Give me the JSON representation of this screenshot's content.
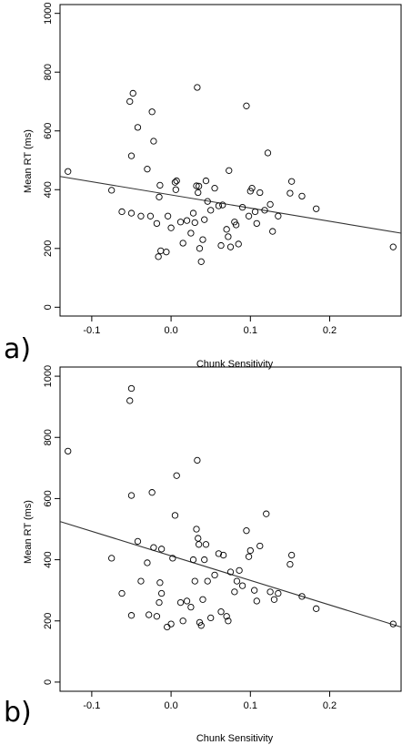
{
  "chart_data": [
    {
      "type": "scatter",
      "panel_label": "a)",
      "xlabel": "Chunk Sensitivity",
      "ylabel": "Mean RT (ms)",
      "xlim": [
        -0.14,
        0.29
      ],
      "ylim": [
        -30,
        1030
      ],
      "xticks": [
        -0.1,
        0.0,
        0.1,
        0.2
      ],
      "xtick_labels": [
        "-0.1",
        "0.0",
        "0.1",
        "0.2"
      ],
      "yticks": [
        0,
        200,
        400,
        600,
        800,
        1000
      ],
      "ytick_labels": [
        "0",
        "200",
        "400",
        "600",
        "800",
        "1000"
      ],
      "grid": false,
      "regression_line": {
        "x": [
          -0.14,
          0.29
        ],
        "y": [
          445,
          252
        ]
      },
      "points": [
        {
          "x": -0.13,
          "y": 462
        },
        {
          "x": -0.075,
          "y": 398
        },
        {
          "x": -0.062,
          "y": 325
        },
        {
          "x": -0.05,
          "y": 320
        },
        {
          "x": -0.052,
          "y": 700
        },
        {
          "x": -0.048,
          "y": 728
        },
        {
          "x": -0.05,
          "y": 515
        },
        {
          "x": -0.042,
          "y": 612
        },
        {
          "x": -0.038,
          "y": 310
        },
        {
          "x": -0.03,
          "y": 470
        },
        {
          "x": -0.026,
          "y": 310
        },
        {
          "x": -0.024,
          "y": 665
        },
        {
          "x": -0.022,
          "y": 565
        },
        {
          "x": -0.018,
          "y": 285
        },
        {
          "x": -0.016,
          "y": 172
        },
        {
          "x": -0.015,
          "y": 375
        },
        {
          "x": -0.014,
          "y": 415
        },
        {
          "x": -0.013,
          "y": 192
        },
        {
          "x": -0.006,
          "y": 188
        },
        {
          "x": -0.004,
          "y": 310
        },
        {
          "x": 0.0,
          "y": 270
        },
        {
          "x": 0.005,
          "y": 425
        },
        {
          "x": 0.006,
          "y": 400
        },
        {
          "x": 0.007,
          "y": 430
        },
        {
          "x": 0.012,
          "y": 290
        },
        {
          "x": 0.015,
          "y": 218
        },
        {
          "x": 0.02,
          "y": 295
        },
        {
          "x": 0.025,
          "y": 252
        },
        {
          "x": 0.028,
          "y": 320
        },
        {
          "x": 0.03,
          "y": 288
        },
        {
          "x": 0.032,
          "y": 413
        },
        {
          "x": 0.033,
          "y": 748
        },
        {
          "x": 0.034,
          "y": 390
        },
        {
          "x": 0.035,
          "y": 412
        },
        {
          "x": 0.036,
          "y": 200
        },
        {
          "x": 0.038,
          "y": 155
        },
        {
          "x": 0.04,
          "y": 230
        },
        {
          "x": 0.042,
          "y": 298
        },
        {
          "x": 0.044,
          "y": 430
        },
        {
          "x": 0.046,
          "y": 360
        },
        {
          "x": 0.05,
          "y": 330
        },
        {
          "x": 0.055,
          "y": 405
        },
        {
          "x": 0.06,
          "y": 345
        },
        {
          "x": 0.063,
          "y": 210
        },
        {
          "x": 0.065,
          "y": 348
        },
        {
          "x": 0.07,
          "y": 265
        },
        {
          "x": 0.072,
          "y": 240
        },
        {
          "x": 0.073,
          "y": 465
        },
        {
          "x": 0.075,
          "y": 205
        },
        {
          "x": 0.08,
          "y": 290
        },
        {
          "x": 0.082,
          "y": 280
        },
        {
          "x": 0.085,
          "y": 215
        },
        {
          "x": 0.09,
          "y": 340
        },
        {
          "x": 0.095,
          "y": 685
        },
        {
          "x": 0.098,
          "y": 310
        },
        {
          "x": 0.1,
          "y": 395
        },
        {
          "x": 0.102,
          "y": 405
        },
        {
          "x": 0.106,
          "y": 325
        },
        {
          "x": 0.108,
          "y": 285
        },
        {
          "x": 0.112,
          "y": 390
        },
        {
          "x": 0.118,
          "y": 330
        },
        {
          "x": 0.122,
          "y": 525
        },
        {
          "x": 0.125,
          "y": 350
        },
        {
          "x": 0.128,
          "y": 258
        },
        {
          "x": 0.135,
          "y": 310
        },
        {
          "x": 0.15,
          "y": 388
        },
        {
          "x": 0.152,
          "y": 428
        },
        {
          "x": 0.165,
          "y": 378
        },
        {
          "x": 0.183,
          "y": 335
        },
        {
          "x": 0.28,
          "y": 205
        }
      ]
    },
    {
      "type": "scatter",
      "panel_label": "b)",
      "xlabel": "Chunk Sensitivity",
      "ylabel": "Mean RT (ms)",
      "xlim": [
        -0.14,
        0.29
      ],
      "ylim": [
        -30,
        1030
      ],
      "xticks": [
        -0.1,
        0.0,
        0.1,
        0.2
      ],
      "xtick_labels": [
        "-0.1",
        "0.0",
        "0.1",
        "0.2"
      ],
      "yticks": [
        0,
        200,
        400,
        600,
        800,
        1000
      ],
      "ytick_labels": [
        "0",
        "200",
        "400",
        "600",
        "800",
        "1000"
      ],
      "grid": false,
      "regression_line": {
        "x": [
          -0.14,
          0.29
        ],
        "y": [
          525,
          180
        ]
      },
      "points": [
        {
          "x": -0.13,
          "y": 755
        },
        {
          "x": -0.075,
          "y": 405
        },
        {
          "x": -0.062,
          "y": 290
        },
        {
          "x": -0.052,
          "y": 920
        },
        {
          "x": -0.05,
          "y": 960
        },
        {
          "x": -0.05,
          "y": 610
        },
        {
          "x": -0.05,
          "y": 218
        },
        {
          "x": -0.042,
          "y": 460
        },
        {
          "x": -0.038,
          "y": 330
        },
        {
          "x": -0.03,
          "y": 390
        },
        {
          "x": -0.028,
          "y": 220
        },
        {
          "x": -0.024,
          "y": 620
        },
        {
          "x": -0.022,
          "y": 440
        },
        {
          "x": -0.018,
          "y": 215
        },
        {
          "x": -0.015,
          "y": 260
        },
        {
          "x": -0.014,
          "y": 325
        },
        {
          "x": -0.012,
          "y": 290
        },
        {
          "x": -0.012,
          "y": 435
        },
        {
          "x": -0.005,
          "y": 180
        },
        {
          "x": 0.0,
          "y": 190
        },
        {
          "x": 0.002,
          "y": 405
        },
        {
          "x": 0.005,
          "y": 545
        },
        {
          "x": 0.007,
          "y": 675
        },
        {
          "x": 0.012,
          "y": 260
        },
        {
          "x": 0.015,
          "y": 200
        },
        {
          "x": 0.02,
          "y": 265
        },
        {
          "x": 0.025,
          "y": 245
        },
        {
          "x": 0.028,
          "y": 400
        },
        {
          "x": 0.03,
          "y": 330
        },
        {
          "x": 0.032,
          "y": 500
        },
        {
          "x": 0.033,
          "y": 725
        },
        {
          "x": 0.034,
          "y": 470
        },
        {
          "x": 0.035,
          "y": 450
        },
        {
          "x": 0.036,
          "y": 195
        },
        {
          "x": 0.038,
          "y": 185
        },
        {
          "x": 0.04,
          "y": 270
        },
        {
          "x": 0.042,
          "y": 400
        },
        {
          "x": 0.044,
          "y": 450
        },
        {
          "x": 0.046,
          "y": 330
        },
        {
          "x": 0.05,
          "y": 210
        },
        {
          "x": 0.055,
          "y": 350
        },
        {
          "x": 0.06,
          "y": 420
        },
        {
          "x": 0.063,
          "y": 230
        },
        {
          "x": 0.066,
          "y": 415
        },
        {
          "x": 0.07,
          "y": 215
        },
        {
          "x": 0.072,
          "y": 200
        },
        {
          "x": 0.075,
          "y": 360
        },
        {
          "x": 0.08,
          "y": 295
        },
        {
          "x": 0.083,
          "y": 330
        },
        {
          "x": 0.086,
          "y": 365
        },
        {
          "x": 0.09,
          "y": 315
        },
        {
          "x": 0.095,
          "y": 495
        },
        {
          "x": 0.098,
          "y": 410
        },
        {
          "x": 0.1,
          "y": 430
        },
        {
          "x": 0.105,
          "y": 300
        },
        {
          "x": 0.108,
          "y": 265
        },
        {
          "x": 0.112,
          "y": 445
        },
        {
          "x": 0.12,
          "y": 550
        },
        {
          "x": 0.125,
          "y": 295
        },
        {
          "x": 0.13,
          "y": 270
        },
        {
          "x": 0.135,
          "y": 290
        },
        {
          "x": 0.15,
          "y": 385
        },
        {
          "x": 0.152,
          "y": 415
        },
        {
          "x": 0.165,
          "y": 280
        },
        {
          "x": 0.183,
          "y": 240
        },
        {
          "x": 0.28,
          "y": 190
        }
      ]
    }
  ]
}
